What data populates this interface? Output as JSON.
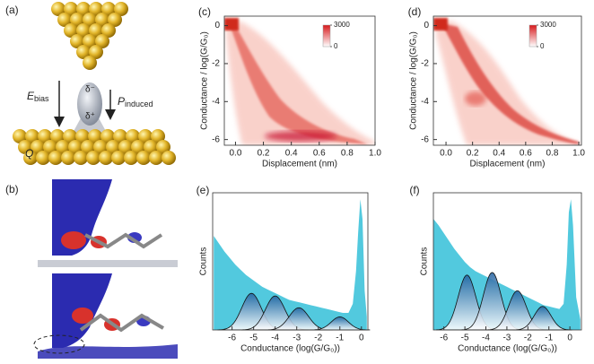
{
  "panels": {
    "a": {
      "label": "(a)",
      "e_symbol": "E",
      "e_sub": "bias",
      "p_symbol": "P",
      "p_sub": "induced",
      "delta_minus": "δ⁻",
      "delta_plus": "δ⁺",
      "q": "Q"
    },
    "b": {
      "label": "(b)"
    }
  },
  "chart_data": [
    {
      "type": "histogram2d",
      "label": "(c)",
      "xlabel": "Displacement (nm)",
      "ylabel": "Conductance / log(G/G₀)",
      "xlim": [
        -0.08,
        1.0
      ],
      "ylim": [
        -6.3,
        0.5
      ],
      "xticks": [
        {
          "value": 0,
          "label": "0.0"
        },
        {
          "value": 0.2,
          "label": "0.2"
        },
        {
          "value": 0.4,
          "label": "0.4"
        },
        {
          "value": 0.6,
          "label": "0.6"
        },
        {
          "value": 0.8,
          "label": "0.8"
        },
        {
          "value": 1,
          "label": "1.0"
        }
      ],
      "yticks": [
        0,
        -2,
        -4,
        -6
      ],
      "zticks": [
        0,
        3000
      ],
      "colormap": [
        "#ffffff",
        "#d7191c"
      ]
    },
    {
      "type": "histogram2d",
      "label": "(d)",
      "xlabel": "Displacement (nm)",
      "ylabel": "Conductance / log(G/G₀)",
      "xlim": [
        -0.095,
        1.02
      ],
      "ylim": [
        -6.3,
        0.5
      ],
      "xticks": [
        {
          "value": 0,
          "label": "0.0"
        },
        {
          "value": 0.2,
          "label": "0.2"
        },
        {
          "value": 0.4,
          "label": "0.4"
        },
        {
          "value": 0.6,
          "label": "0.6"
        },
        {
          "value": 0.8,
          "label": "0.8"
        },
        {
          "value": 1,
          "label": "1.0"
        }
      ],
      "yticks": [
        0,
        -2,
        -4,
        -6
      ],
      "zticks": [
        0,
        3000
      ],
      "colormap": [
        "#ffffff",
        "#d7191c"
      ]
    },
    {
      "type": "histogram",
      "label": "(e)",
      "xlabel": "Conductance (log(G/G₀))",
      "ylabel": "Counts",
      "xlim": [
        -6.9,
        0.3
      ],
      "ylim": [
        0,
        1.05
      ],
      "xticks": [
        -6,
        -5,
        -4,
        -3,
        -2,
        -1,
        0
      ],
      "color": "#3fc3da",
      "x": [
        -6.85,
        -6.6,
        -6.35,
        -6.1,
        -5.85,
        -5.6,
        -5.35,
        -5.1,
        -4.85,
        -4.6,
        -4.35,
        -4.1,
        -3.85,
        -3.6,
        -3.35,
        -3.1,
        -2.85,
        -2.6,
        -2.35,
        -2.1,
        -1.85,
        -1.6,
        -1.35,
        -1.1,
        -0.85,
        -0.6,
        -0.4,
        -0.25,
        -0.15,
        -0.05,
        0.05,
        0.15,
        0.25
      ],
      "values": [
        0.72,
        0.66,
        0.6,
        0.55,
        0.5,
        0.46,
        0.42,
        0.39,
        0.36,
        0.33,
        0.31,
        0.29,
        0.27,
        0.25,
        0.23,
        0.22,
        0.21,
        0.2,
        0.19,
        0.18,
        0.17,
        0.16,
        0.15,
        0.14,
        0.13,
        0.13,
        0.2,
        0.45,
        0.75,
        1.0,
        0.85,
        0.3,
        0.1
      ],
      "fits": [
        {
          "center": -5.1,
          "height": 0.28,
          "width": 0.45
        },
        {
          "center": -4.0,
          "height": 0.26,
          "width": 0.45
        },
        {
          "center": -2.9,
          "height": 0.17,
          "width": 0.45
        },
        {
          "center": -1.0,
          "height": 0.1,
          "width": 0.4
        }
      ]
    },
    {
      "type": "histogram",
      "label": "(f)",
      "xlabel": "Conductance (log(G/G₀))",
      "ylabel": "Counts",
      "xlim": [
        -6.5,
        0.55
      ],
      "ylim": [
        0,
        1.05
      ],
      "xticks": [
        -6,
        -5,
        -4,
        -3,
        -2,
        -1,
        0
      ],
      "color": "#3fc3da",
      "x": [
        -6.5,
        -6.25,
        -6.0,
        -5.75,
        -5.5,
        -5.25,
        -5.0,
        -4.75,
        -4.5,
        -4.25,
        -4.0,
        -3.75,
        -3.5,
        -3.25,
        -3.0,
        -2.75,
        -2.5,
        -2.25,
        -2.0,
        -1.75,
        -1.5,
        -1.25,
        -1.0,
        -0.75,
        -0.5,
        -0.3,
        -0.15,
        -0.05,
        0.05,
        0.15,
        0.3,
        0.5
      ],
      "values": [
        0.85,
        0.8,
        0.74,
        0.68,
        0.62,
        0.57,
        0.52,
        0.48,
        0.45,
        0.43,
        0.41,
        0.39,
        0.37,
        0.35,
        0.33,
        0.31,
        0.29,
        0.27,
        0.25,
        0.23,
        0.21,
        0.19,
        0.18,
        0.17,
        0.16,
        0.2,
        0.5,
        0.9,
        1.0,
        0.8,
        0.25,
        0.08
      ],
      "fits": [
        {
          "center": -4.9,
          "height": 0.42,
          "width": 0.42
        },
        {
          "center": -3.7,
          "height": 0.44,
          "width": 0.42
        },
        {
          "center": -2.5,
          "height": 0.3,
          "width": 0.42
        },
        {
          "center": -1.3,
          "height": 0.18,
          "width": 0.4
        }
      ]
    }
  ]
}
